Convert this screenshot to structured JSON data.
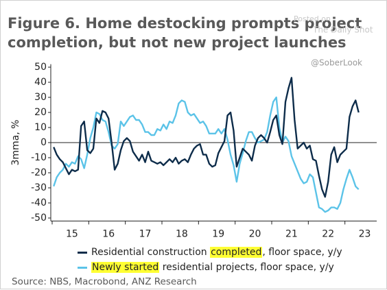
{
  "chart_data": {
    "type": "line",
    "title": [
      "Figure 6. Home destocking prompts project",
      "completion, but not new project launches"
    ],
    "watermark": [
      "Posted on",
      "The Daily Shot"
    ],
    "handle": "@SoberLook",
    "y_label": "3mma, %",
    "source": "Source: NBS, Macrobond, ANZ Research",
    "categories": [
      null,
      null,
      null,
      null,
      null,
      null,
      "15",
      null,
      null,
      null,
      null,
      null,
      null,
      null,
      null,
      null,
      null,
      null,
      "16",
      null,
      null,
      null,
      null,
      null,
      null,
      null,
      null,
      null,
      null,
      null,
      "17",
      null,
      null,
      null,
      null,
      null,
      null,
      null,
      null,
      null,
      null,
      null,
      "18",
      null,
      null,
      null,
      null,
      null,
      null,
      null,
      null,
      null,
      null,
      null,
      "19",
      null,
      null,
      null,
      null,
      null,
      null,
      null,
      null,
      null,
      null,
      null,
      "20",
      null,
      null,
      null,
      null,
      null,
      null,
      null,
      null,
      null,
      null,
      null,
      "21",
      null,
      null,
      null,
      null,
      null,
      null,
      null,
      null,
      null,
      null,
      null,
      "22",
      null,
      null,
      null,
      null,
      null,
      null,
      null,
      null,
      null,
      null,
      null,
      "23",
      null,
      null,
      null,
      null,
      null
    ],
    "ylim": [
      -52,
      52
    ],
    "yticks": [
      -50,
      -40,
      -30,
      -20,
      -10,
      0,
      10,
      20,
      30,
      40,
      50
    ],
    "zero_line": true,
    "series": [
      {
        "name": "Residential construction completed, floor space, y/y",
        "highlight": "completed",
        "color": "#0d2c4a",
        "values": [
          -3,
          -8,
          -11,
          -13,
          -17,
          -21,
          -18,
          -19,
          -18,
          11,
          14,
          -5,
          -7,
          -4,
          16,
          13,
          21,
          20,
          16,
          0,
          -18,
          -14,
          -5,
          1,
          3,
          1,
          -6,
          -9,
          -12,
          -8,
          -13,
          -6,
          -12,
          -13,
          -14,
          -13,
          -15,
          -13,
          -11,
          -13,
          -10,
          -14,
          -12,
          -11,
          -13,
          -8,
          -4,
          -2,
          -1,
          -8,
          -8,
          -14,
          -16,
          -15,
          -7,
          -3,
          1,
          18,
          20,
          8,
          -16,
          -10,
          -4,
          -6,
          -8,
          -12,
          -2,
          3,
          5,
          3,
          0,
          7,
          15,
          18,
          5,
          -1,
          27,
          36,
          43,
          15,
          -4,
          -2,
          0,
          -4,
          -2,
          -11,
          -12,
          -22,
          -31,
          -36,
          -26,
          -8,
          -3,
          -13,
          -8,
          -6,
          -4,
          17,
          24,
          28,
          20,
          null,
          null,
          null,
          null,
          null,
          null,
          null
        ]
      },
      {
        "name": "Newly started residential projects, floor space, y/y",
        "highlight": "Newly started",
        "color": "#5bc3e8",
        "values": [
          -29,
          -23,
          -20,
          -18,
          -14,
          -16,
          -13,
          -14,
          -9,
          -11,
          -17,
          -8,
          3,
          10,
          20,
          19,
          15,
          14,
          7,
          -2,
          -4,
          -1,
          14,
          11,
          14,
          17,
          18,
          15,
          15,
          12,
          7,
          7,
          5,
          5,
          9,
          8,
          12,
          9,
          14,
          13,
          18,
          26,
          28,
          27,
          20,
          18,
          19,
          16,
          13,
          14,
          11,
          6,
          6,
          6,
          9,
          6,
          9,
          2,
          -8,
          -15,
          -26,
          -14,
          -7,
          1,
          7,
          7,
          3,
          0,
          1,
          2,
          7,
          18,
          27,
          30,
          10,
          0,
          4,
          1,
          -9,
          -14,
          -19,
          -24,
          -27,
          -26,
          -21,
          -23,
          -33,
          -43,
          -44,
          -46,
          -45,
          -43,
          -43,
          -44,
          -40,
          -31,
          -24,
          -18,
          -23,
          -29,
          -31,
          null,
          null,
          null,
          null,
          null,
          null,
          null
        ]
      }
    ]
  }
}
